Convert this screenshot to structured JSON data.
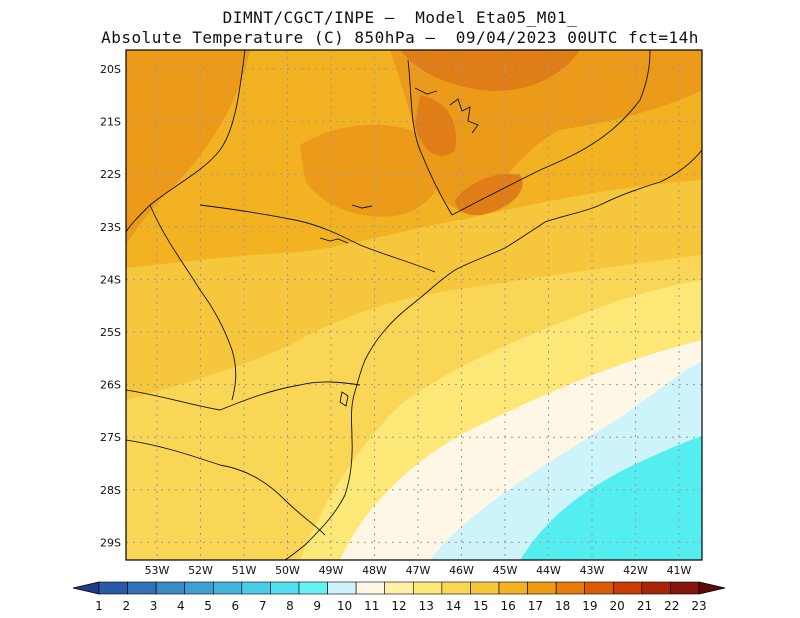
{
  "title_line1": "DIMNT/CGCT/INPE —  Model Eta05_M01_",
  "title_line2": "Absolute Temperature (C) 850hPa —  09/04/2023 00UTC fct=14h",
  "lat_labels": [
    "20S",
    "21S",
    "22S",
    "23S",
    "24S",
    "25S",
    "26S",
    "27S",
    "28S",
    "29S"
  ],
  "lon_labels": [
    "53W",
    "52W",
    "51W",
    "50W",
    "49W",
    "48W",
    "47W",
    "46W",
    "45W",
    "44W",
    "43W",
    "42W",
    "41W"
  ],
  "colorbar": {
    "labels": [
      "1",
      "2",
      "3",
      "4",
      "5",
      "6",
      "7",
      "8",
      "9",
      "10",
      "11",
      "12",
      "13",
      "14",
      "15",
      "16",
      "17",
      "18",
      "19",
      "20",
      "21",
      "22",
      "23"
    ],
    "colors": [
      "#1f3c8c",
      "#2a5aa3",
      "#3072b5",
      "#3a8ac4",
      "#3f9fd0",
      "#44b4dc",
      "#4ccbe6",
      "#55dfef",
      "#66f2f5",
      "#cdf3fb",
      "#fff7e6",
      "#fff1a8",
      "#fde776",
      "#fad657",
      "#f6c63c",
      "#f2b222",
      "#ee9a12",
      "#e67c0c",
      "#dc5b07",
      "#c83c05",
      "#a72608",
      "#86150c",
      "#5e0a0a"
    ]
  },
  "map_colors": {
    "t11": "#fff7e6",
    "t10": "#cdf3fb",
    "t9": "#55eef0",
    "t13": "#fde776",
    "t14": "#fad657",
    "t15": "#f6c63c",
    "t16": "#f2b222",
    "t17": "#eb9a19",
    "t18": "#e07d17"
  }
}
